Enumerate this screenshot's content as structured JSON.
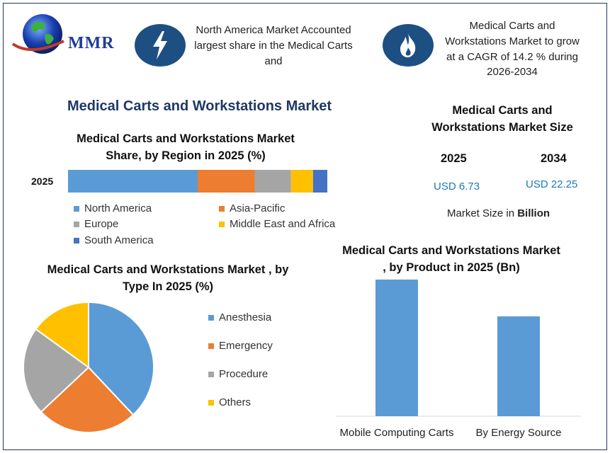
{
  "logo": {
    "text": "MMR"
  },
  "header": {
    "left_text": "North America Market Accounted largest share in the Medical Carts and",
    "right_text": "Medical Carts and Workstations Market to grow at a CAGR of 14.2 % during 2026-2034"
  },
  "main_title": "Medical Carts and Workstations Market",
  "market_size": {
    "title": "Medical Carts and Workstations Market Size",
    "year_a": "2025",
    "year_b": "2034",
    "value_a": "USD 6.73",
    "value_b": "USD 22.25",
    "note_prefix": "Market Size in ",
    "note_bold": "Billion"
  },
  "colors": {
    "north_america": "#5b9bd5",
    "asia_pacific": "#ed7d31",
    "europe": "#a5a5a5",
    "mea": "#ffc000",
    "south_america": "#4472c4",
    "title_navy": "#1f3864"
  },
  "icons": {
    "left": "lightning-bolt-icon",
    "right": "flame-icon"
  },
  "chart_data": [
    {
      "type": "bar",
      "orientation": "horizontal-stacked",
      "title": "Medical Carts and Workstations Market Share, by Region in 2025 (%)",
      "categories": [
        "2025"
      ],
      "series": [
        {
          "name": "North America",
          "values": [
            50
          ]
        },
        {
          "name": "Asia-Pacific",
          "values": [
            22
          ]
        },
        {
          "name": "Europe",
          "values": [
            14
          ]
        },
        {
          "name": "Middle East and Africa",
          "values": [
            8.5
          ]
        },
        {
          "name": "South America",
          "values": [
            5.5
          ]
        }
      ],
      "xlim": [
        0,
        100
      ],
      "legend": "bottom"
    },
    {
      "type": "pie",
      "title": "Medical Carts and Workstations Market , by Type In 2025 (%)",
      "labels": [
        "Anesthesia",
        "Emergency",
        "Procedure",
        "Others"
      ],
      "values": [
        38,
        25,
        22,
        15
      ],
      "legend": "right"
    },
    {
      "type": "bar",
      "title": "Medical Carts and Workstations Market , by Product in 2025 (Bn)",
      "categories": [
        "Mobile Computing Carts",
        "By Energy Source"
      ],
      "values": [
        3.9,
        2.85
      ],
      "ylim": [
        0,
        4
      ],
      "grid": false
    }
  ]
}
